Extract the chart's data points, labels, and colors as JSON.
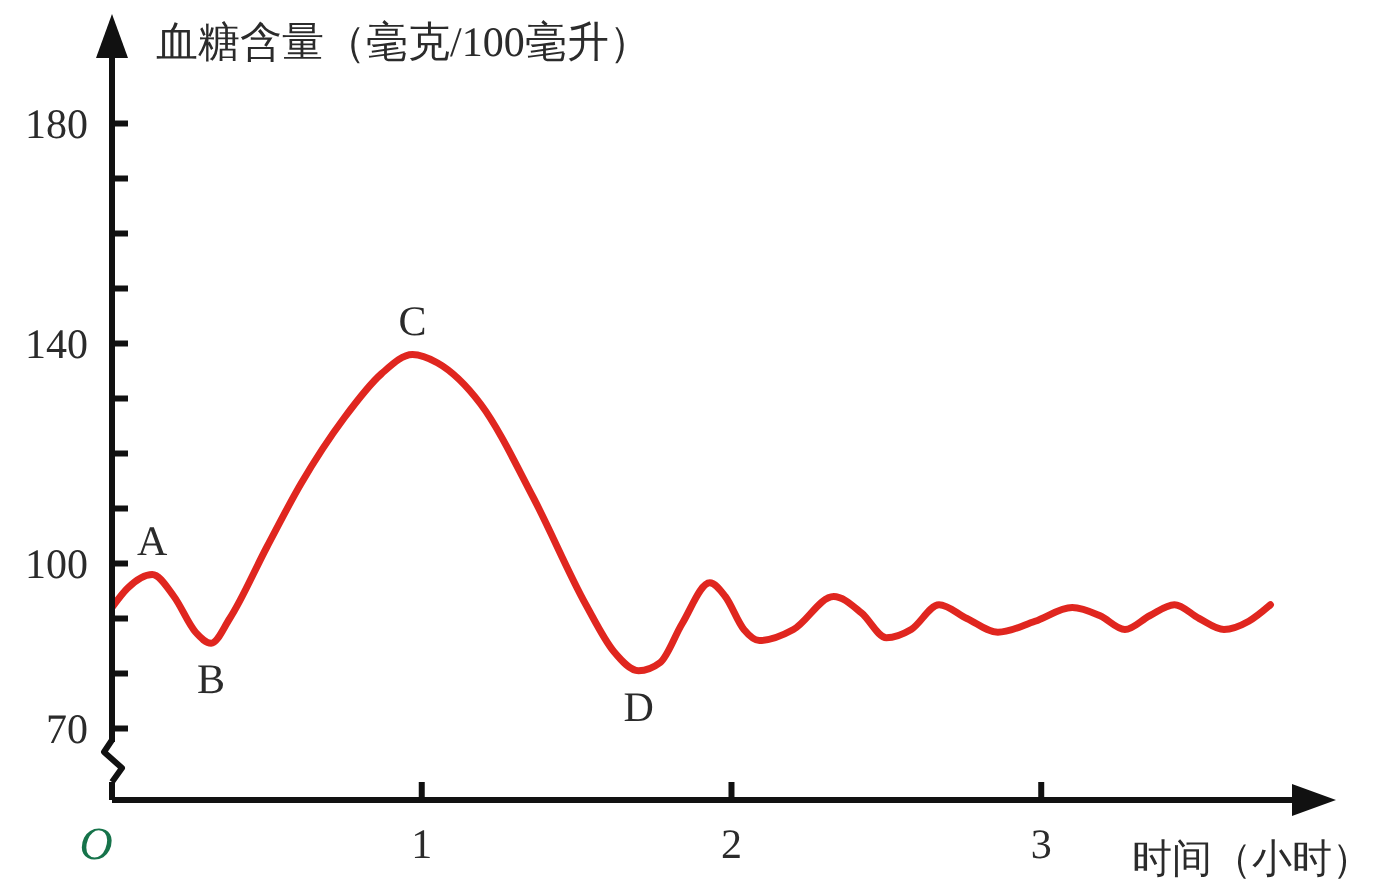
{
  "chart_data": {
    "type": "line",
    "xlabel": "时间（小时）",
    "ylabel": "血糖含量（毫克/100毫升）",
    "xlim": [
      0,
      3.9
    ],
    "ylim": [
      57,
      197
    ],
    "xticks": [
      {
        "value": 0,
        "label": "O"
      },
      1,
      2,
      3
    ],
    "yticks": [
      70,
      {
        "value": 80,
        "label": null
      },
      {
        "value": 90,
        "label": null
      },
      100,
      {
        "value": 110,
        "label": null
      },
      {
        "value": 120,
        "label": null
      },
      {
        "value": 130,
        "label": null
      },
      140,
      {
        "value": 150,
        "label": null
      },
      {
        "value": 160,
        "label": null
      },
      {
        "value": 170,
        "label": null
      },
      180
    ],
    "x": [
      0,
      0.05,
      0.13,
      0.2,
      0.27,
      0.32,
      0.38,
      0.5,
      0.61,
      0.75,
      0.87,
      0.97,
      1.05,
      1.19,
      1.36,
      1.53,
      1.62,
      1.7,
      1.77,
      1.84,
      1.93,
      1.98,
      2.04,
      2.09,
      2.2,
      2.33,
      2.42,
      2.5,
      2.58,
      2.67,
      2.76,
      2.86,
      2.98,
      3.1,
      3.19,
      3.27,
      3.35,
      3.43,
      3.51,
      3.59,
      3.67,
      3.74
    ],
    "values": [
      92,
      95.5,
      98,
      94,
      87.5,
      85.5,
      90,
      103,
      114.5,
      126.5,
      134.5,
      138,
      136.5,
      129,
      112,
      92.5,
      84,
      80.5,
      82,
      89,
      96.5,
      94,
      88,
      86,
      88,
      94,
      91,
      86.5,
      88,
      92.5,
      90,
      87.5,
      89.5,
      92,
      90.5,
      88,
      90.5,
      92.5,
      90,
      88,
      89.5,
      92.5
    ],
    "color": "#e0261f",
    "annotations": [
      {
        "text": "A",
        "x": 0.13,
        "y": 98
      },
      {
        "text": "B",
        "x": 0.32,
        "y": 85.5
      },
      {
        "text": "C",
        "x": 0.97,
        "y": 138
      },
      {
        "text": "D",
        "x": 1.7,
        "y": 80.5
      }
    ]
  }
}
